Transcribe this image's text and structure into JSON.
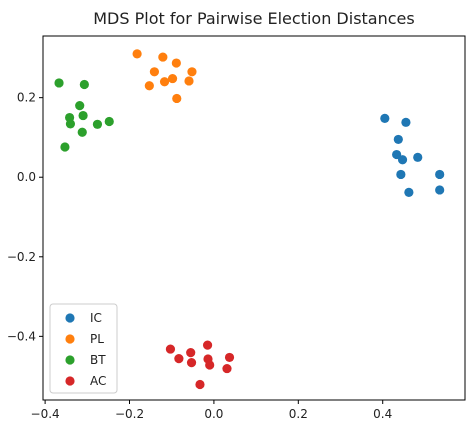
{
  "chart_data": {
    "type": "scatter",
    "title": "MDS Plot for Pairwise Election Distances",
    "xlabel": "",
    "ylabel": "",
    "xlim": [
      -0.405,
      0.595
    ],
    "ylim": [
      -0.56,
      0.355
    ],
    "xticks": [
      -0.4,
      -0.2,
      0.0,
      0.2,
      0.4
    ],
    "xtick_labels": [
      "−0.4",
      "−0.2",
      "0.0",
      "0.2",
      "0.4"
    ],
    "yticks": [
      -0.4,
      -0.2,
      0.0,
      0.2
    ],
    "ytick_labels": [
      "−0.4",
      "−0.2",
      "0.0",
      "0.2"
    ],
    "grid": false,
    "legend_position": "lower-left",
    "series": [
      {
        "name": "IC",
        "color": "#1f77b4",
        "points": [
          [
            0.405,
            0.148
          ],
          [
            0.455,
            0.138
          ],
          [
            0.437,
            0.095
          ],
          [
            0.433,
            0.057
          ],
          [
            0.447,
            0.044
          ],
          [
            0.483,
            0.05
          ],
          [
            0.443,
            0.007
          ],
          [
            0.535,
            0.007
          ],
          [
            0.535,
            -0.032
          ],
          [
            0.462,
            -0.038
          ]
        ]
      },
      {
        "name": "PL",
        "color": "#ff7f0e",
        "points": [
          [
            -0.182,
            0.31
          ],
          [
            -0.121,
            0.302
          ],
          [
            -0.089,
            0.287
          ],
          [
            -0.141,
            0.265
          ],
          [
            -0.117,
            0.24
          ],
          [
            -0.098,
            0.248
          ],
          [
            -0.052,
            0.265
          ],
          [
            -0.059,
            0.242
          ],
          [
            -0.153,
            0.23
          ],
          [
            -0.088,
            0.198
          ]
        ]
      },
      {
        "name": "BT",
        "color": "#2ca02c",
        "points": [
          [
            -0.367,
            0.237
          ],
          [
            -0.307,
            0.233
          ],
          [
            -0.318,
            0.18
          ],
          [
            -0.342,
            0.15
          ],
          [
            -0.31,
            0.155
          ],
          [
            -0.34,
            0.134
          ],
          [
            -0.276,
            0.133
          ],
          [
            -0.248,
            0.14
          ],
          [
            -0.312,
            0.113
          ],
          [
            -0.353,
            0.076
          ]
        ]
      },
      {
        "name": "AC",
        "color": "#d62728",
        "points": [
          [
            -0.015,
            -0.422
          ],
          [
            -0.103,
            -0.432
          ],
          [
            -0.055,
            -0.441
          ],
          [
            -0.083,
            -0.456
          ],
          [
            0.037,
            -0.453
          ],
          [
            -0.014,
            -0.457
          ],
          [
            -0.053,
            -0.466
          ],
          [
            -0.01,
            -0.472
          ],
          [
            0.031,
            -0.481
          ],
          [
            -0.033,
            -0.521
          ]
        ]
      }
    ]
  }
}
